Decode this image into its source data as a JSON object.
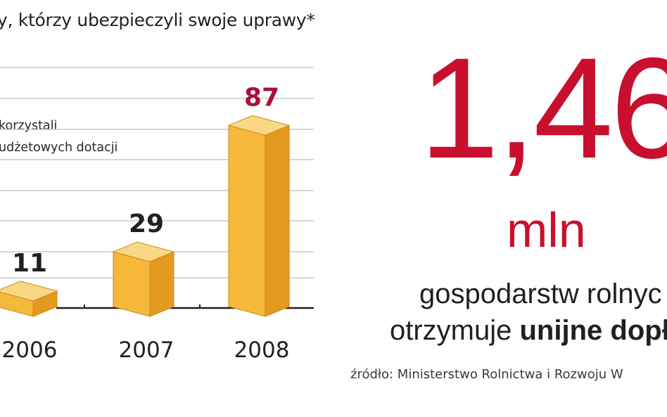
{
  "header": {
    "title": "y, którzy ubezpieczyli swoje uprawy*"
  },
  "chart_data": {
    "type": "bar",
    "title": "y, którzy ubezpieczyli swoje uprawy*",
    "annotation_line1": "korzystali",
    "annotation_line2": "udżetowych dotacji",
    "categories": [
      "2006",
      "2007",
      "2008"
    ],
    "values": [
      11,
      29,
      87
    ],
    "value_labels": [
      "11",
      "29",
      "87"
    ],
    "highlight_index": 2,
    "ylim": [
      0,
      100
    ],
    "grid": true,
    "colors": {
      "bar_front": "#f5b83b",
      "bar_side": "#e39a1e",
      "bar_top": "#fad784",
      "bar_edge": "#c98a1a",
      "gridline": "#bdbdbd",
      "value_label": "#231f20",
      "value_label_highlight": "#a8123a",
      "axis": "#231f20"
    }
  },
  "stat": {
    "number": "1,46",
    "unit": "mln",
    "line1": "gospodarstw rolnyc",
    "line2_prefix": "otrzymuje ",
    "line2_bold": "unijne dopła",
    "color": "#c8102e"
  },
  "source": "źródło: Ministerstwo Rolnictwa i Rozwoju W"
}
